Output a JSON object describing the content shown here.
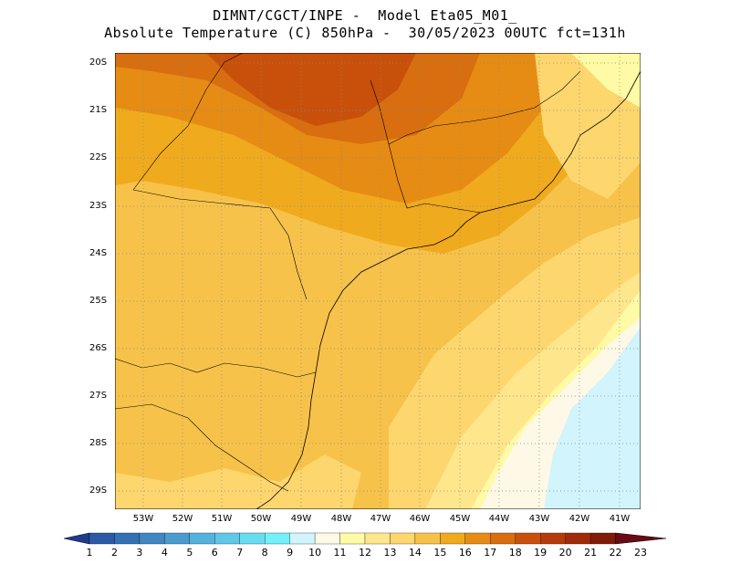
{
  "title": {
    "line1": "DIMNT/CGCT/INPE -  Model Eta05_M01_",
    "line2": "Absolute Temperature (C) 850hPa -  30/05/2023 00UTC fct=131h"
  },
  "map": {
    "lat_labels": [
      "20S",
      "21S",
      "22S",
      "23S",
      "24S",
      "25S",
      "26S",
      "27S",
      "28S",
      "29S"
    ],
    "lon_labels": [
      "53W",
      "52W",
      "51W",
      "50W",
      "49W",
      "48W",
      "47W",
      "46W",
      "45W",
      "44W",
      "43W",
      "42W",
      "41W"
    ],
    "lon_range": [
      -53.8,
      -40.6
    ],
    "lat_range": [
      -29.4,
      -19.8
    ]
  },
  "colorbar": {
    "labels": [
      "1",
      "2",
      "3",
      "4",
      "5",
      "6",
      "7",
      "8",
      "9",
      "10",
      "11",
      "12",
      "13",
      "14",
      "15",
      "16",
      "17",
      "18",
      "19",
      "20",
      "21",
      "22",
      "23"
    ],
    "colors": [
      "#1e3c8c",
      "#2a5aa5",
      "#3470b4",
      "#3f86c2",
      "#4a9ccf",
      "#55b2dc",
      "#5fc7e7",
      "#69dcf0",
      "#74f0fa",
      "#d2f4fc",
      "#fef8e6",
      "#fffaa5",
      "#fee68c",
      "#fdd66e",
      "#f7c24a",
      "#f0aa1e",
      "#e68c14",
      "#d86e0f",
      "#c8500a",
      "#b43c0a",
      "#a02a0a",
      "#821a0a",
      "#6a0a14"
    ]
  }
}
